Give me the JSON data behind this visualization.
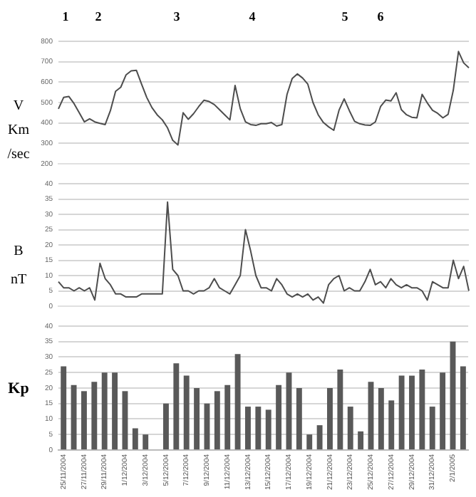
{
  "chart_data": [
    {
      "type": "line",
      "ylabel": "V\nKm\n/sec",
      "ylim": [
        200,
        800
      ],
      "yticks": [
        200,
        300,
        400,
        500,
        600,
        700,
        800
      ],
      "grid": "y",
      "tick_labels": "y",
      "annotations": [
        "1",
        "2",
        "3",
        "4",
        "5",
        "6"
      ],
      "categories": [
        null,
        null,
        null,
        null,
        null,
        null,
        null,
        null,
        null,
        null,
        null,
        null,
        null,
        null,
        null,
        null,
        null,
        null,
        null,
        null,
        null,
        null,
        null,
        null,
        null,
        null,
        null,
        null,
        null,
        null,
        null,
        null,
        null,
        null,
        null,
        null,
        null,
        null,
        null,
        null,
        null,
        null,
        null,
        null,
        null,
        null,
        null,
        null,
        null,
        null,
        null,
        null,
        null,
        null,
        null,
        null,
        null,
        null,
        null,
        null,
        null,
        null,
        null,
        null,
        null,
        null,
        null,
        null,
        null,
        null,
        null,
        null,
        null,
        null,
        null,
        null,
        null,
        null,
        null,
        null
      ],
      "series": [
        {
          "color": "#4d4d4d",
          "values": [
            469,
            525,
            530,
            495,
            450,
            405,
            420,
            405,
            398,
            392,
            460,
            555,
            575,
            635,
            655,
            658,
            590,
            525,
            475,
            440,
            415,
            376,
            315,
            292,
            450,
            418,
            445,
            480,
            511,
            505,
            490,
            465,
            440,
            415,
            584,
            470,
            405,
            392,
            388,
            396,
            396,
            402,
            385,
            392,
            540,
            618,
            640,
            620,
            590,
            500,
            440,
            402,
            381,
            364,
            462,
            518,
            460,
            408,
            396,
            390,
            388,
            405,
            480,
            512,
            508,
            548,
            465,
            440,
            428,
            425,
            540,
            498,
            462,
            447,
            425,
            442,
            560,
            750,
            694,
            670
          ]
        }
      ]
    },
    {
      "type": "line",
      "ylabel": "B\nnT",
      "ylim": [
        0,
        40
      ],
      "yticks": [
        0,
        5,
        10,
        15,
        20,
        25,
        30,
        35,
        40
      ],
      "grid": "y",
      "tick_labels": "y",
      "categories": [
        null,
        null,
        null,
        null,
        null,
        null,
        null,
        null,
        null,
        null,
        null,
        null,
        null,
        null,
        null,
        null,
        null,
        null,
        null,
        null,
        null,
        null,
        null,
        null,
        null,
        null,
        null,
        null,
        null,
        null,
        null,
        null,
        null,
        null,
        null,
        null,
        null,
        null,
        null,
        null,
        null,
        null,
        null,
        null,
        null,
        null,
        null,
        null,
        null,
        null,
        null,
        null,
        null,
        null,
        null,
        null,
        null,
        null,
        null,
        null,
        null,
        null,
        null,
        null,
        null,
        null,
        null,
        null,
        null,
        null,
        null,
        null,
        null,
        null,
        null,
        null,
        null,
        null,
        null,
        null
      ],
      "series": [
        {
          "color": "#4d4d4d",
          "values": [
            8,
            6,
            6,
            5,
            6,
            5,
            6,
            2,
            14,
            9,
            7,
            4,
            4,
            3,
            3,
            3,
            4,
            4,
            4,
            4,
            4,
            34,
            12,
            10,
            5,
            5,
            4,
            5,
            5,
            6,
            9,
            6,
            5,
            4,
            7,
            10,
            25,
            18,
            10,
            6,
            6,
            5,
            9,
            7,
            4,
            3,
            4,
            3,
            4,
            2,
            3,
            1,
            7,
            9,
            10,
            5,
            6,
            5,
            5,
            8,
            12,
            7,
            8,
            6,
            9,
            7,
            6,
            7,
            6,
            6,
            5,
            2,
            8,
            7,
            6,
            6,
            15,
            9,
            13,
            5
          ]
        }
      ]
    },
    {
      "type": "bar",
      "ylabel": "Kp",
      "ylim": [
        0,
        40
      ],
      "yticks": [
        0,
        5,
        10,
        15,
        20,
        25,
        30,
        35,
        40
      ],
      "grid": "y",
      "color": "#595959",
      "categories": [
        "25/11/2004",
        null,
        "27/11/2004",
        null,
        "29/11/2004",
        null,
        "1/12/2004",
        null,
        "3/12/2004",
        null,
        "5/12/2004",
        null,
        "7/12/2004",
        null,
        "9/12/2004",
        null,
        "11/12/2004",
        null,
        "13/12/2004",
        null,
        "15/12/2004",
        null,
        "17/12/2004",
        null,
        "19/12/2004",
        null,
        "21/12/2004",
        null,
        "23/12/2004",
        null,
        "25/12/2004",
        null,
        "27/12/2004",
        null,
        "29/12/2004",
        null,
        "31/12/2004",
        null,
        "2/1/2005",
        null
      ],
      "values": [
        27,
        21,
        19,
        22,
        25,
        25,
        19,
        7,
        5,
        null,
        15,
        28,
        24,
        20,
        15,
        19,
        21,
        31,
        14,
        14,
        13,
        21,
        25,
        20,
        5,
        8,
        20,
        26,
        14,
        6,
        22,
        20,
        16,
        24,
        24,
        26,
        14,
        25,
        35,
        27
      ]
    }
  ]
}
